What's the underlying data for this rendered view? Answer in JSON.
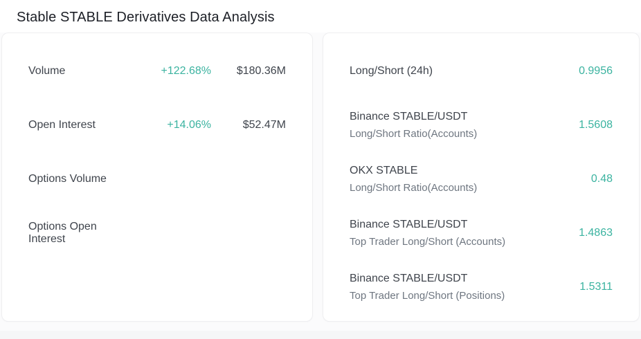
{
  "page": {
    "title": "Stable STABLE Derivatives Data Analysis"
  },
  "colors": {
    "accent_green": "#3bb3a0",
    "label_dark": "#3f444c",
    "label_muted": "#6e7680",
    "card_border": "#eeeef0",
    "card_bg": "#ffffff",
    "page_bg": "#f5f6f7"
  },
  "left_card": {
    "rows": [
      {
        "label": "Volume",
        "change": "+122.68%",
        "value": "$180.36M"
      },
      {
        "label": "Open Interest",
        "change": "+14.06%",
        "value": "$52.47M"
      },
      {
        "label": "Options Volume",
        "change": "",
        "value": ""
      },
      {
        "label": "Options Open Interest",
        "change": "",
        "value": ""
      }
    ]
  },
  "right_card": {
    "rows": [
      {
        "title": "Long/Short (24h)",
        "subtitle": "",
        "value": "0.9956"
      },
      {
        "title": "Binance STABLE/USDT",
        "subtitle": "Long/Short Ratio(Accounts)",
        "value": "1.5608"
      },
      {
        "title": "OKX STABLE",
        "subtitle": "Long/Short Ratio(Accounts)",
        "value": "0.48"
      },
      {
        "title": "Binance STABLE/USDT",
        "subtitle": "Top Trader Long/Short (Accounts)",
        "value": "1.4863"
      },
      {
        "title": "Binance STABLE/USDT",
        "subtitle": "Top Trader Long/Short (Positions)",
        "value": "1.5311"
      }
    ]
  }
}
